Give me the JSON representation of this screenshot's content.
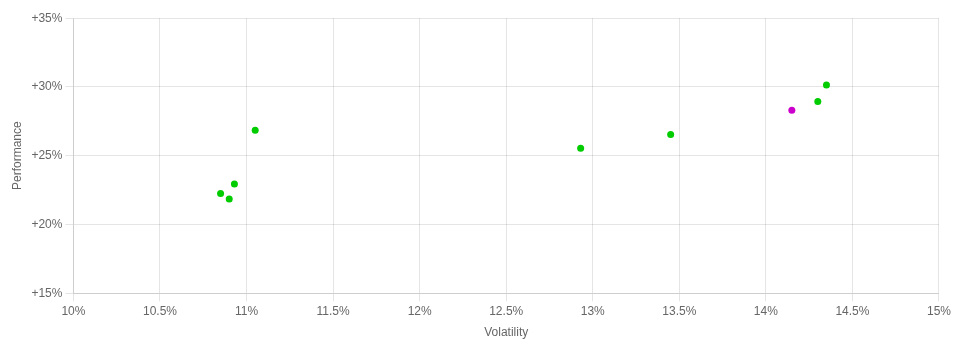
{
  "chart_data": {
    "type": "scatter",
    "xlabel": "Volatility",
    "ylabel": "Performance",
    "x": [
      0.1093,
      0.1085,
      0.109,
      0.1105,
      0.1293,
      0.1345,
      0.1435,
      0.143,
      0.1415
    ],
    "values": [
      0.2295,
      0.2225,
      0.2185,
      0.2685,
      0.2555,
      0.2655,
      0.3015,
      0.2895,
      0.283
    ],
    "colors": [
      "#00cc00",
      "#00cc00",
      "#00cc00",
      "#00cc00",
      "#00cc00",
      "#00cc00",
      "#00cc00",
      "#00cc00",
      "#cc00cc"
    ],
    "xlim": [
      0.1,
      0.15
    ],
    "ylim": [
      0.15,
      0.35
    ],
    "xticks": [
      {
        "value": 0.1,
        "label": "10%"
      },
      {
        "value": 0.105,
        "label": "10.5%"
      },
      {
        "value": 0.11,
        "label": "11%"
      },
      {
        "value": 0.115,
        "label": "11.5%"
      },
      {
        "value": 0.12,
        "label": "12%"
      },
      {
        "value": 0.125,
        "label": "12.5%"
      },
      {
        "value": 0.13,
        "label": "13%"
      },
      {
        "value": 0.135,
        "label": "13.5%"
      },
      {
        "value": 0.14,
        "label": "14%"
      },
      {
        "value": 0.145,
        "label": "14.5%"
      },
      {
        "value": 0.15,
        "label": "15%"
      }
    ],
    "yticks": [
      {
        "value": 0.15,
        "label": "+15%"
      },
      {
        "value": 0.2,
        "label": "+20%"
      },
      {
        "value": 0.25,
        "label": "+25%"
      },
      {
        "value": 0.3,
        "label": "+30%"
      },
      {
        "value": 0.35,
        "label": "+35%"
      }
    ],
    "grid": true
  }
}
